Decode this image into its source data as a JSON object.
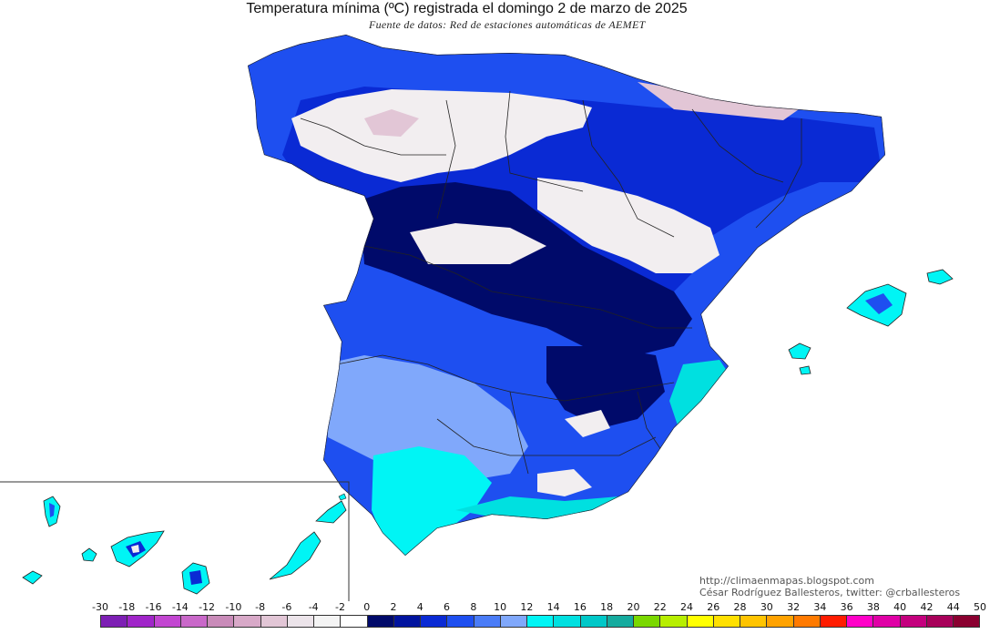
{
  "title": "Temperatura mínima (ºC) registrada el domingo 2 de marzo de 2025",
  "subtitle": "Fuente de datos: Red de estaciones automáticas de AEMET",
  "credits": {
    "blog": "http://climaenmapas.blogspot.com",
    "author": "César Rodríguez Ballesteros, twitter: @crballesteros"
  },
  "regions": [
    {
      "name": "Península Ibérica",
      "shown": true
    },
    {
      "name": "Islas Baleares",
      "shown": true
    },
    {
      "name": "Islas Canarias (recuadro)",
      "shown": true
    }
  ],
  "legend": {
    "unit": "ºC",
    "ticks": [
      "-30",
      "-18",
      "-16",
      "-14",
      "-12",
      "-10",
      "-8",
      "-6",
      "-4",
      "-2",
      "0",
      "2",
      "4",
      "6",
      "8",
      "10",
      "12",
      "14",
      "16",
      "18",
      "20",
      "22",
      "24",
      "26",
      "28",
      "30",
      "32",
      "34",
      "36",
      "38",
      "40",
      "42",
      "44",
      "50"
    ],
    "colors": [
      "#7d1fb4",
      "#a025c9",
      "#c246d1",
      "#c968c9",
      "#c98bb9",
      "#d8a9c8",
      "#e2c6d6",
      "#ece4ea",
      "#f4f4f4",
      "#ffffff",
      "#000a6a",
      "#00139e",
      "#0a2ad4",
      "#1e4ff0",
      "#4a7cf7",
      "#80a8fb",
      "#00f5f5",
      "#00e0e0",
      "#00c8c8",
      "#15ab9e",
      "#7ad800",
      "#b7ee00",
      "#ffff00",
      "#ffe000",
      "#ffc400",
      "#ffa200",
      "#ff7a00",
      "#ff1c00",
      "#ff00c8",
      "#e000a6",
      "#c4007e",
      "#a8005a",
      "#8a0030"
    ]
  },
  "colors": {
    "deep_blue": "#000a6a",
    "blue": "#1e4ff0",
    "light_blue": "#80a8fb",
    "cyan": "#00f5f5",
    "cold_white": "#f2eef0",
    "border": "#222222"
  }
}
